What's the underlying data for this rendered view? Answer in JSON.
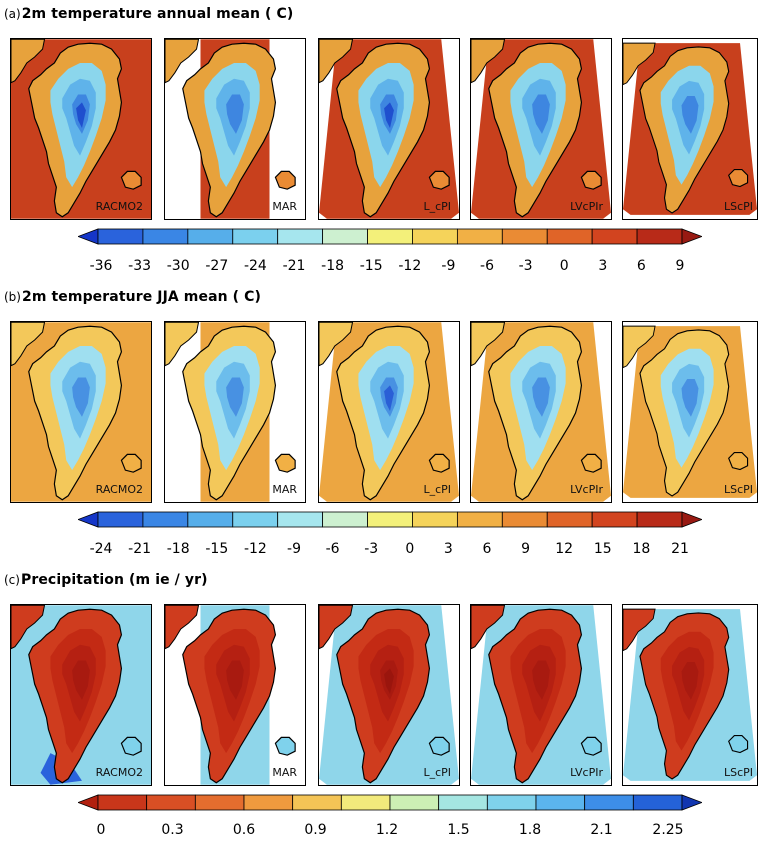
{
  "sections": [
    {
      "id": "a",
      "label": "(a)",
      "title": "2m temperature annual mean (  C)",
      "palette": "temp",
      "panel_labels": [
        "RACMO2",
        "MAR",
        "L_cPI",
        "LVcPIr",
        "LScPI"
      ],
      "colorbar_colors": [
        "#1536c8",
        "#2a63dc",
        "#3a86e5",
        "#56aeea",
        "#7bd0ee",
        "#a6e6ee",
        "#cdf0d0",
        "#f3f07a",
        "#f5d35a",
        "#f1b045",
        "#ea8b34",
        "#e06428",
        "#d2441f",
        "#b82a18",
        "#981a12"
      ],
      "ticks": [
        "-36",
        "-33",
        "-30",
        "-27",
        "-24",
        "-21",
        "-18",
        "-15",
        "-12",
        "-9",
        "-6",
        "-3",
        "0",
        "3",
        "6",
        "9"
      ]
    },
    {
      "id": "b",
      "label": "(b)",
      "title": "2m temperature JJA mean (  C)",
      "palette": "temp",
      "panel_labels": [
        "RACMO2",
        "MAR",
        "L_cPI",
        "LVcPIr",
        "LScPI"
      ],
      "colorbar_colors": [
        "#1536c8",
        "#2a63dc",
        "#3a86e5",
        "#56aeea",
        "#7bd0ee",
        "#a6e6ee",
        "#cdf0d0",
        "#f3f07a",
        "#f5d35a",
        "#f1b045",
        "#ea8b34",
        "#e06428",
        "#d2441f",
        "#b82a18",
        "#981a12"
      ],
      "ticks": [
        "-24",
        "-21",
        "-18",
        "-15",
        "-12",
        "-9",
        "-6",
        "-3",
        "0",
        "3",
        "6",
        "9",
        "12",
        "15",
        "18",
        "21"
      ]
    },
    {
      "id": "c",
      "label": "(c)",
      "title": "Precipitation (m ie / yr)",
      "palette": "precip",
      "panel_labels": [
        "RACMO2",
        "MAR",
        "L_cPI",
        "LVcPIr",
        "LScPI"
      ],
      "colorbar_colors": [
        "#b2200f",
        "#c8361a",
        "#d94f24",
        "#e46d2e",
        "#ef9a3e",
        "#f4c456",
        "#f2ea7c",
        "#ccefb4",
        "#a5e6e2",
        "#7fd2ec",
        "#5bb5ee",
        "#3d8ee8",
        "#2462d8",
        "#1136b0"
      ],
      "ticks": [
        "0",
        "0.3",
        "0.6",
        "0.9",
        "1.2",
        "1.5",
        "1.8",
        "2.1",
        "2.25"
      ]
    }
  ]
}
